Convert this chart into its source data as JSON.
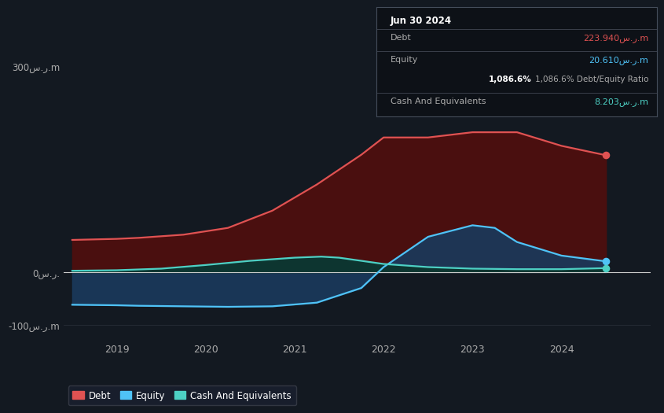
{
  "background_color": "#131921",
  "plot_bg_color": "#131921",
  "grid_color": "#2a2f3a",
  "title_box": {
    "date": "Jun 30 2024",
    "debt_label": "Debt",
    "debt_value": "223.940س.ر.m",
    "debt_color": "#e05252",
    "equity_label": "Equity",
    "equity_value": "20.610س.ر.m",
    "equity_color": "#4fc3f7",
    "ratio_text": "Debt/Equity Ratio",
    "ratio_bold": "1,086.6%",
    "cash_label": "Cash And Equivalents",
    "cash_value": "8.203س.ر.m",
    "cash_color": "#4dd0c4"
  },
  "ytick_labels": [
    "300س.ر.m",
    "0س.ر.",
    "-100س.ر.m"
  ],
  "xtick_labels": [
    "2019",
    "2020",
    "2021",
    "2022",
    "2023",
    "2024"
  ],
  "ylim": [
    -130,
    345
  ],
  "xlim": [
    2018.4,
    2025.0
  ],
  "legend": [
    {
      "label": "Debt",
      "color": "#e05252"
    },
    {
      "label": "Equity",
      "color": "#4fc3f7"
    },
    {
      "label": "Cash And Equivalents",
      "color": "#4dd0c4"
    }
  ],
  "debt_x": [
    2018.5,
    2019.0,
    2019.25,
    2019.75,
    2020.25,
    2020.75,
    2021.25,
    2021.75,
    2022.0,
    2022.5,
    2023.0,
    2023.5,
    2024.0,
    2024.5
  ],
  "debt_y": [
    62,
    64,
    66,
    72,
    85,
    118,
    168,
    225,
    258,
    258,
    268,
    268,
    242,
    224
  ],
  "equity_x": [
    2018.5,
    2019.0,
    2019.25,
    2019.75,
    2020.25,
    2020.75,
    2021.25,
    2021.75,
    2022.0,
    2022.5,
    2023.0,
    2023.25,
    2023.5,
    2024.0,
    2024.5
  ],
  "equity_y": [
    -62,
    -63,
    -64,
    -65,
    -66,
    -65,
    -58,
    -30,
    10,
    68,
    90,
    85,
    58,
    32,
    21
  ],
  "cash_x": [
    2018.5,
    2019.0,
    2019.5,
    2020.0,
    2020.5,
    2021.0,
    2021.3,
    2021.5,
    2022.0,
    2022.5,
    2023.0,
    2023.5,
    2024.0,
    2024.5
  ],
  "cash_y": [
    3,
    4,
    7,
    14,
    22,
    28,
    30,
    28,
    16,
    10,
    7,
    6,
    6,
    8
  ],
  "debt_line_color": "#e05252",
  "debt_fill_color": "#4a0f0f",
  "equity_line_color": "#4fc3f7",
  "equity_fill_color": "#1a3a5c",
  "cash_line_color": "#4dd0c4",
  "cash_fill_color": "#0d3530"
}
